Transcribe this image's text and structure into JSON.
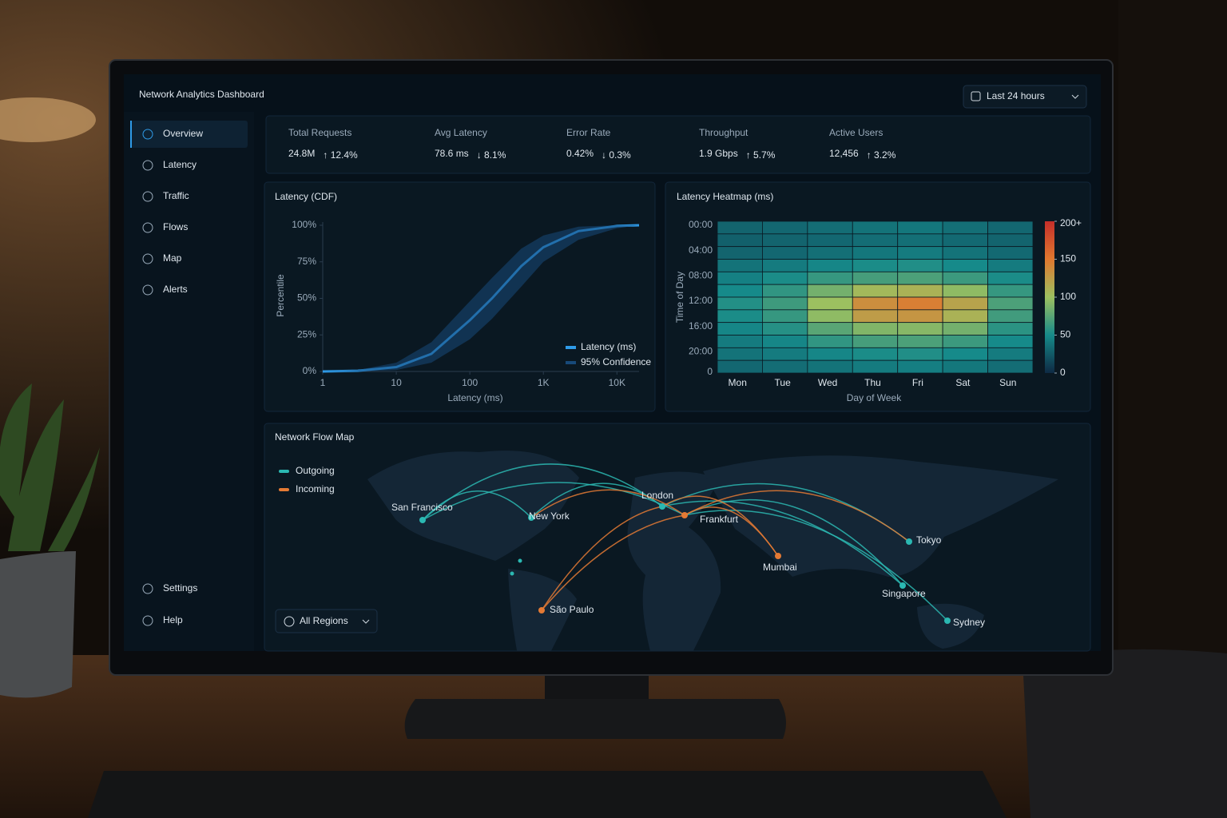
{
  "header": {
    "title": "Network Analytics Dashboard",
    "range": "Last 24 hours"
  },
  "nav": [
    "Overview",
    "Latency",
    "Traffic",
    "Flows",
    "Map",
    "Alerts"
  ],
  "nav_bottom": [
    "Settings",
    "Help"
  ],
  "kpis": [
    {
      "label": "Total Requests",
      "value": "24.8M",
      "change": "↑ 12.4%"
    },
    {
      "label": "Avg Latency",
      "value": "78.6 ms",
      "change": "↓ 8.1%"
    },
    {
      "label": "Error Rate",
      "value": "0.42%",
      "change": "↓ 0.3%"
    },
    {
      "label": "Throughput",
      "value": "1.9 Gbps",
      "change": "↑ 5.7%"
    },
    {
      "label": "Active Users",
      "value": "12,456",
      "change": "↑ 3.2%"
    }
  ],
  "chart_data": [
    {
      "type": "line",
      "title": "Latency (CDF)",
      "xlabel": "Latency (ms)",
      "ylabel": "Percentile",
      "xscale": "log",
      "xlim": [
        1,
        20000
      ],
      "ylim": [
        0,
        100
      ],
      "xticks": [
        1,
        10,
        100,
        {
          "value": 1000,
          "label": "1K"
        },
        {
          "value": 10000,
          "label": "10K"
        }
      ],
      "yticks": [
        {
          "value": 0,
          "label": "0%"
        },
        {
          "value": 25,
          "label": "25%"
        },
        {
          "value": 50,
          "label": "50%"
        },
        {
          "value": 75,
          "label": "75%"
        },
        {
          "value": 100,
          "label": "100%"
        }
      ],
      "x": [
        1,
        3,
        10,
        30,
        100,
        200,
        500,
        1000,
        3000,
        10000,
        20000
      ],
      "series": [
        {
          "name": "Latency (ms)",
          "color": "#2f9be8",
          "values": [
            0,
            0.5,
            3,
            12,
            35,
            50,
            72,
            85,
            96,
            99.5,
            100
          ]
        },
        {
          "name": "95% Confidence",
          "color": "#174a7a",
          "upper": [
            0,
            1,
            6,
            20,
            48,
            64,
            84,
            93,
            99,
            100,
            100
          ],
          "lower": [
            0,
            0,
            1,
            6,
            22,
            36,
            58,
            75,
            90,
            98,
            100
          ]
        }
      ]
    },
    {
      "type": "heatmap",
      "title": "Latency Heatmap (ms)",
      "xlabel": "Day of Week",
      "ylabel": "Time of Day",
      "categories": [
        "Mon",
        "Tue",
        "Wed",
        "Thu",
        "Fri",
        "Sat",
        "Sun"
      ],
      "rows": [
        "00:00",
        null,
        "04:00",
        null,
        "08:00",
        null,
        "12:00",
        null,
        "16:00",
        null,
        "20:00",
        null
      ],
      "y_end_label": "0",
      "values": [
        [
          30,
          32,
          35,
          38,
          40,
          36,
          32
        ],
        [
          28,
          30,
          32,
          35,
          36,
          33,
          30
        ],
        [
          30,
          32,
          36,
          40,
          42,
          38,
          33
        ],
        [
          38,
          42,
          48,
          52,
          54,
          50,
          42
        ],
        [
          45,
          52,
          62,
          68,
          70,
          64,
          52
        ],
        [
          50,
          60,
          85,
          105,
          110,
          95,
          62
        ],
        [
          55,
          65,
          100,
          135,
          145,
          120,
          70
        ],
        [
          52,
          62,
          95,
          125,
          130,
          110,
          66
        ],
        [
          48,
          56,
          75,
          90,
          92,
          85,
          58
        ],
        [
          42,
          48,
          60,
          68,
          70,
          64,
          50
        ],
        [
          38,
          42,
          48,
          52,
          54,
          50,
          42
        ],
        [
          32,
          35,
          38,
          42,
          44,
          40,
          35
        ]
      ],
      "zlim": [
        0,
        200
      ],
      "zticks": [
        0,
        50,
        100,
        150,
        {
          "value": 200,
          "label": "200+"
        }
      ],
      "colorscale": [
        [
          0,
          "#0e2a44"
        ],
        [
          50,
          "#168a8a"
        ],
        [
          100,
          "#9cc060"
        ],
        [
          150,
          "#e0782f"
        ],
        [
          200,
          "#c42e2a"
        ]
      ]
    }
  ],
  "map": {
    "title": "Network Flow Map",
    "series": [
      {
        "name": "Outgoing",
        "color": "#2bb8b2"
      },
      {
        "name": "Incoming",
        "color": "#e47a34"
      }
    ],
    "cities": [
      "San Francisco",
      "New York",
      "London",
      "Frankfurt",
      "Tokyo",
      "Mumbai",
      "Singapore",
      "Sydney",
      "São Paulo"
    ],
    "filter": "All Regions"
  }
}
